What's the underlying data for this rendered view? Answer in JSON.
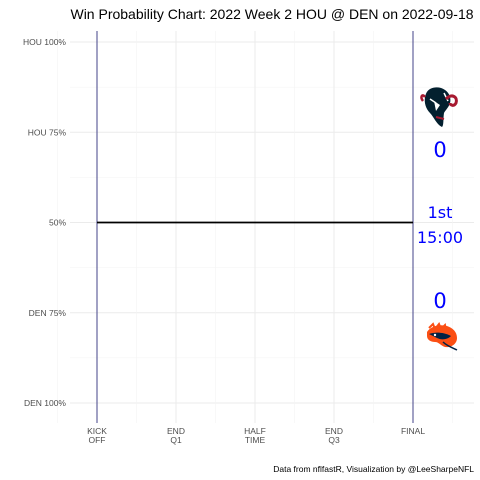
{
  "chart_data": {
    "type": "line",
    "title": "Win Probability Chart: 2022 Week 2 HOU @ DEN on 2022-09-18",
    "caption": "Data from nflfastR, Visualization by @LeeSharpeNFL",
    "y_ticks": [
      {
        "value": 1.0,
        "label": "HOU 100%"
      },
      {
        "value": 0.75,
        "label": "HOU 75%"
      },
      {
        "value": 0.5,
        "label": "50%"
      },
      {
        "value": 0.25,
        "label": "DEN 75%"
      },
      {
        "value": 0.0,
        "label": "DEN 100%"
      }
    ],
    "x_ticks": [
      {
        "value": 0,
        "label": [
          "KICK",
          "OFF"
        ]
      },
      {
        "value": 900,
        "label": [
          "END",
          "Q1"
        ]
      },
      {
        "value": 1800,
        "label": [
          "HALF",
          "TIME"
        ]
      },
      {
        "value": 2700,
        "label": [
          "END",
          "Q3"
        ]
      },
      {
        "value": 3600,
        "label": [
          "FINAL"
        ]
      }
    ],
    "xlim": [
      0,
      3600
    ],
    "ylim": [
      0,
      1
    ],
    "series": [
      {
        "x": [
          0,
          3600
        ],
        "y": [
          0.5,
          0.5
        ],
        "color": "#000000"
      }
    ],
    "grid": true,
    "kickoff_line_color": "#191970",
    "final_line_color": "#191970",
    "home_team": {
      "abbr": "DEN",
      "score": "0",
      "color": "#fb4f14",
      "navy": "#002244"
    },
    "away_team": {
      "abbr": "HOU",
      "score": "0",
      "color": "#a71930",
      "navy": "#03202f"
    },
    "game_state": {
      "quarter": "1st",
      "clock": "15:00",
      "color": "#0000ff"
    }
  }
}
